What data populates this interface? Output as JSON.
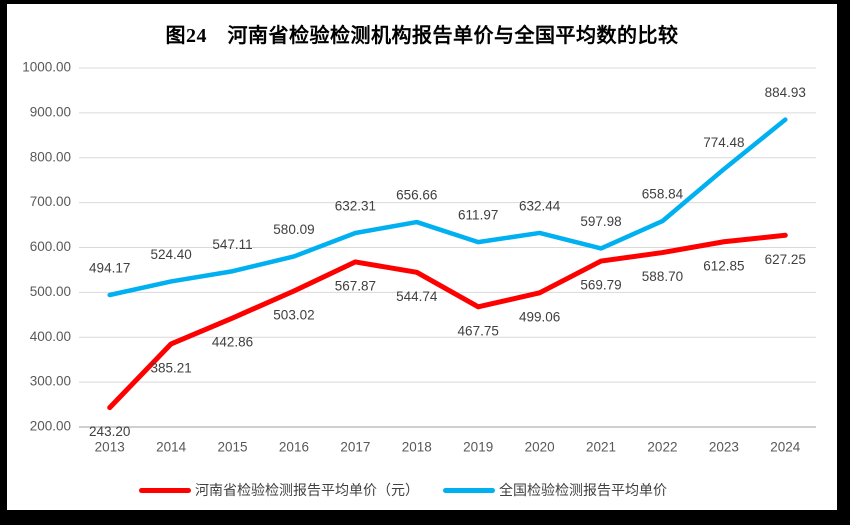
{
  "chart_data": {
    "type": "line",
    "title": "图24　河南省检验检测机构报告单价与全国平均数的比较",
    "categories": [
      "2013",
      "2014",
      "2015",
      "2016",
      "2017",
      "2018",
      "2019",
      "2020",
      "2021",
      "2022",
      "2023",
      "2024"
    ],
    "series": [
      {
        "name": "河南省检验检测报告平均单价（元）",
        "color": "#FE0000",
        "label_position": "below",
        "values": [
          243.2,
          385.21,
          442.86,
          503.02,
          567.87,
          544.74,
          467.75,
          499.06,
          569.79,
          588.7,
          612.85,
          627.25
        ]
      },
      {
        "name": "全国检验检测报告平均单价",
        "color": "#00B0F0",
        "label_position": "above",
        "values": [
          494.17,
          524.4,
          547.11,
          580.09,
          632.31,
          656.66,
          611.97,
          632.44,
          597.98,
          658.84,
          774.48,
          884.93
        ]
      }
    ],
    "ylim": [
      200,
      1000
    ],
    "y_step": 100,
    "y_tick_labels": [
      "200.00",
      "300.00",
      "400.00",
      "500.00",
      "600.00",
      "700.00",
      "800.00",
      "900.00",
      "1000.00"
    ],
    "xlabel": "",
    "ylabel": "",
    "grid": "horizontal",
    "legend_position": "bottom",
    "colors": {
      "grid": "#D9D9D9",
      "axis": "#BFBFBF",
      "tick_text": "#595959",
      "data_label_text": "#404040",
      "title_text": "#000000",
      "plot_background": "#FFFFFF",
      "frame": "#000000"
    }
  }
}
